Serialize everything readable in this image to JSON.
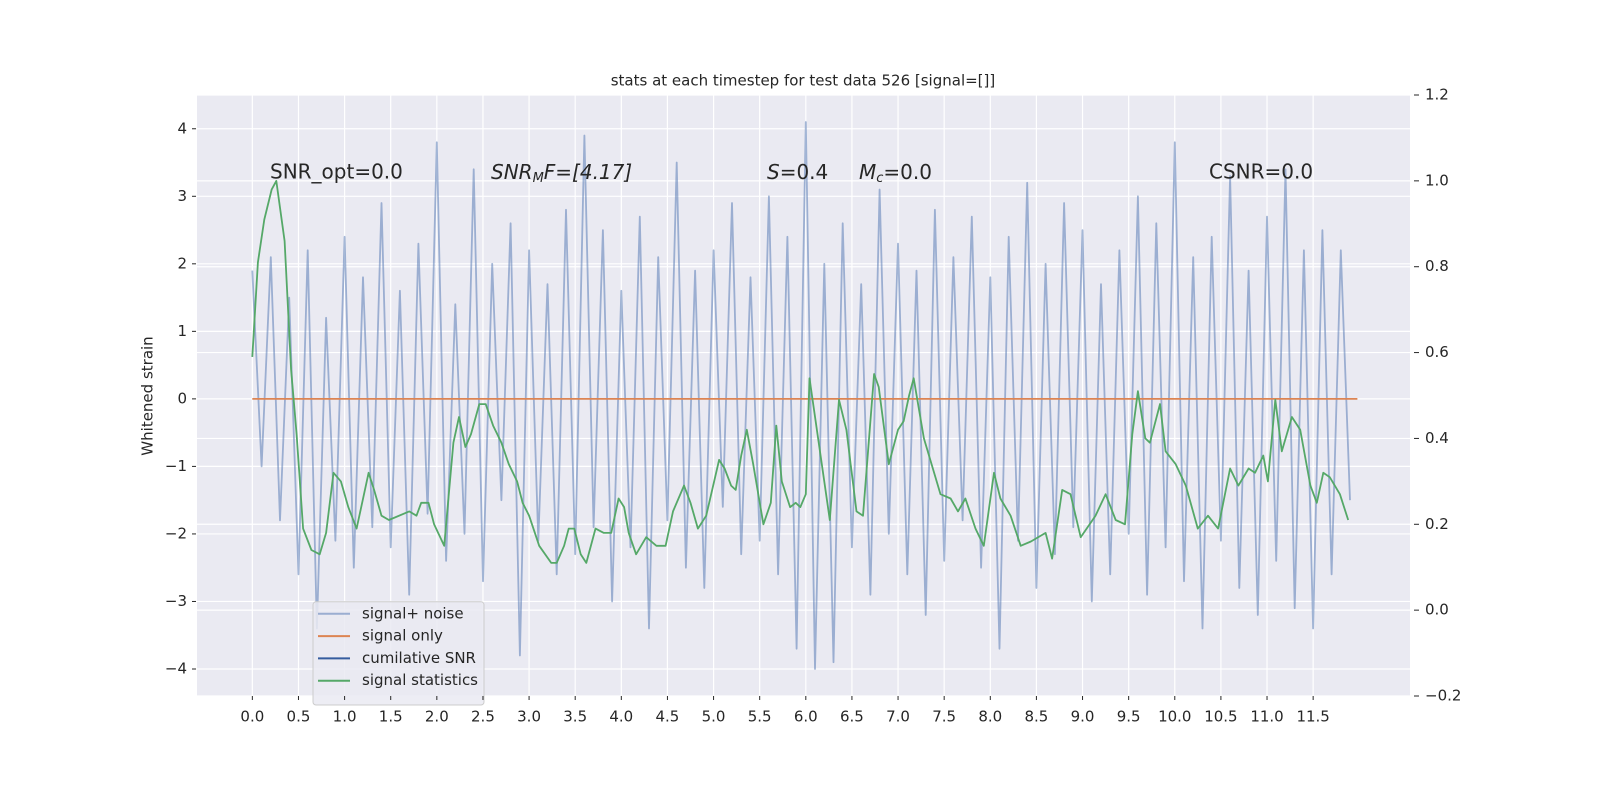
{
  "chart_data": {
    "type": "line",
    "title": "stats at each timestep for test data 526 [signal=[]]",
    "ylabel": "Whitened strain",
    "annotations": [
      "SNR_opt=0.0",
      [
        "SNR",
        "M",
        "F=[4.17]"
      ],
      [
        "S",
        "=0.4"
      ],
      [
        "M",
        "c",
        "=0.0"
      ],
      "CSNR=0.0"
    ],
    "xlim": [
      -0.6,
      12.55
    ],
    "ylim": [
      -4.4,
      4.5
    ],
    "y2lim": [
      -0.2,
      1.2
    ],
    "xticks": [
      {
        "value": 0,
        "label": "0.0"
      },
      0.5,
      {
        "value": 1,
        "label": "1.0"
      },
      1.5,
      {
        "value": 2,
        "label": "2.0"
      },
      2.5,
      {
        "value": 3,
        "label": "3.0"
      },
      3.5,
      {
        "value": 4,
        "label": "4.0"
      },
      4.5,
      {
        "value": 5,
        "label": "5.0"
      },
      5.5,
      {
        "value": 6,
        "label": "6.0"
      },
      6.5,
      {
        "value": 7,
        "label": "7.0"
      },
      7.5,
      {
        "value": 8,
        "label": "8.0"
      },
      8.5,
      {
        "value": 9,
        "label": "9.0"
      },
      9.5,
      {
        "value": 10,
        "label": "10.0"
      },
      10.5,
      {
        "value": 11,
        "label": "11.0"
      },
      11.5
    ],
    "yticks": [
      {
        "value": -4,
        "label": "−4"
      },
      {
        "value": -3,
        "label": "−3"
      },
      {
        "value": -2,
        "label": "−2"
      },
      {
        "value": -1,
        "label": "−1"
      },
      0,
      1,
      2,
      3,
      4
    ],
    "y2ticks": [
      {
        "value": -0.2,
        "label": "−0.2"
      },
      {
        "value": 0,
        "label": "0.0"
      },
      0.2,
      0.4,
      0.6,
      0.8,
      {
        "value": 1,
        "label": "1.0"
      },
      1.2
    ],
    "grid": true,
    "legend_loc": "lower left",
    "series": [
      {
        "name": "signal+ noise",
        "color": "#4c72b0",
        "alpha": 0.5,
        "axis": "y",
        "x": [
          0,
          0.1,
          0.2,
          0.3,
          0.4,
          0.5,
          0.6,
          0.7,
          0.8,
          0.9,
          1,
          1.1,
          1.2,
          1.3,
          1.4,
          1.5,
          1.6,
          1.7,
          1.8,
          1.9,
          2,
          2.1,
          2.2,
          2.3,
          2.4,
          2.5,
          2.6,
          2.7,
          2.8,
          2.9,
          3,
          3.1,
          3.2,
          3.3,
          3.4,
          3.5,
          3.6,
          3.7,
          3.8,
          3.9,
          4,
          4.1,
          4.2,
          4.3,
          4.4,
          4.5,
          4.6,
          4.7,
          4.8,
          4.9,
          5,
          5.1,
          5.2,
          5.3,
          5.4,
          5.5,
          5.6,
          5.7,
          5.8,
          5.9,
          6,
          6.1,
          6.2,
          6.3,
          6.4,
          6.5,
          6.6,
          6.7,
          6.8,
          6.9,
          7,
          7.1,
          7.2,
          7.3,
          7.4,
          7.5,
          7.6,
          7.7,
          7.8,
          7.9,
          8,
          8.1,
          8.2,
          8.3,
          8.4,
          8.5,
          8.6,
          8.7,
          8.8,
          8.9,
          9,
          9.1,
          9.2,
          9.3,
          9.4,
          9.5,
          9.6,
          9.7,
          9.8,
          9.9,
          10,
          10.1,
          10.2,
          10.3,
          10.4,
          10.5,
          10.6,
          10.7,
          10.8,
          10.9,
          11,
          11.1,
          11.2,
          11.3,
          11.4,
          11.5,
          11.6,
          11.7,
          11.8,
          11.9
        ],
        "values": [
          1.9,
          -1.0,
          2.1,
          -1.8,
          1.5,
          -2.6,
          2.2,
          -3.4,
          1.2,
          -2.1,
          2.4,
          -2.5,
          1.8,
          -1.9,
          2.9,
          -2.2,
          1.6,
          -2.9,
          2.3,
          -1.7,
          3.8,
          -2.4,
          1.4,
          -2.0,
          3.4,
          -2.7,
          2.0,
          -1.5,
          2.6,
          -3.8,
          2.2,
          -2.1,
          1.7,
          -2.6,
          2.8,
          -2.3,
          3.9,
          -1.9,
          2.5,
          -3.0,
          1.6,
          -2.2,
          2.7,
          -3.4,
          2.1,
          -1.8,
          3.5,
          -2.5,
          1.9,
          -2.8,
          2.2,
          -1.6,
          2.9,
          -2.3,
          1.8,
          -2.1,
          3.0,
          -2.6,
          2.4,
          -3.7,
          4.1,
          -4.0,
          2.0,
          -3.9,
          2.6,
          -2.2,
          1.7,
          -2.9,
          3.1,
          -2.0,
          2.3,
          -2.6,
          1.9,
          -3.2,
          2.8,
          -2.4,
          2.1,
          -1.8,
          2.7,
          -2.5,
          1.8,
          -3.7,
          2.4,
          -2.1,
          3.2,
          -2.8,
          2.0,
          -2.3,
          2.9,
          -1.9,
          2.5,
          -3.0,
          1.7,
          -2.6,
          2.2,
          -2.0,
          3.0,
          -2.9,
          2.6,
          -2.2,
          3.8,
          -2.7,
          2.1,
          -3.4,
          2.4,
          -2.1,
          3.3,
          -2.8,
          1.9,
          -3.2,
          2.7,
          -2.4,
          3.4,
          -3.1,
          2.2,
          -3.4,
          2.5,
          -2.6,
          2.2,
          -1.5
        ]
      },
      {
        "name": "signal only",
        "color": "#dd8452",
        "alpha": 1,
        "axis": "y",
        "x": [
          0,
          11.98
        ],
        "values": [
          0,
          0
        ]
      },
      {
        "name": "cumilative SNR",
        "color": "#355c9e",
        "alpha": 1,
        "axis": "y",
        "x": [],
        "values": []
      },
      {
        "name": "signal statistics",
        "color": "#55a868",
        "alpha": 1,
        "axis": "y2",
        "x": [
          0,
          0.06,
          0.13,
          0.21,
          0.26,
          0.35,
          0.42,
          0.48,
          0.55,
          0.64,
          0.73,
          0.8,
          0.88,
          0.96,
          1.04,
          1.13,
          1.26,
          1.32,
          1.4,
          1.48,
          1.7,
          1.78,
          1.83,
          1.91,
          1.97,
          2.08,
          2.18,
          2.24,
          2.31,
          2.37,
          2.46,
          2.53,
          2.61,
          2.7,
          2.78,
          2.87,
          2.93,
          3.0,
          3.11,
          3.24,
          3.3,
          3.38,
          3.43,
          3.49,
          3.56,
          3.62,
          3.72,
          3.81,
          3.89,
          3.97,
          4.03,
          4.08,
          4.16,
          4.27,
          4.38,
          4.48,
          4.56,
          4.68,
          4.75,
          4.83,
          4.92,
          5.06,
          5.12,
          5.19,
          5.24,
          5.3,
          5.36,
          5.43,
          5.54,
          5.62,
          5.68,
          5.74,
          5.83,
          5.89,
          5.94,
          6.0,
          6.04,
          6.26,
          6.36,
          6.44,
          6.55,
          6.62,
          6.74,
          6.79,
          6.9,
          7.0,
          7.06,
          7.12,
          7.17,
          7.28,
          7.46,
          7.57,
          7.65,
          7.73,
          7.84,
          7.93,
          8.04,
          8.11,
          8.22,
          8.33,
          8.44,
          8.6,
          8.67,
          8.78,
          8.87,
          8.98,
          9.14,
          9.25,
          9.36,
          9.46,
          9.54,
          9.6,
          9.68,
          9.73,
          9.84,
          9.9,
          10.01,
          10.12,
          10.25,
          10.36,
          10.47,
          10.6,
          10.69,
          10.8,
          10.87,
          10.96,
          11.01,
          11.09,
          11.16,
          11.27,
          11.36,
          11.47,
          11.54,
          11.61,
          11.68,
          11.79,
          11.88
        ],
        "values": [
          0.59,
          0.81,
          0.91,
          0.98,
          1.0,
          0.86,
          0.56,
          0.41,
          0.19,
          0.14,
          0.13,
          0.18,
          0.32,
          0.3,
          0.24,
          0.19,
          0.32,
          0.28,
          0.22,
          0.21,
          0.23,
          0.22,
          0.25,
          0.25,
          0.2,
          0.15,
          0.39,
          0.45,
          0.38,
          0.41,
          0.48,
          0.48,
          0.43,
          0.39,
          0.34,
          0.3,
          0.25,
          0.22,
          0.15,
          0.11,
          0.11,
          0.15,
          0.19,
          0.19,
          0.13,
          0.11,
          0.19,
          0.18,
          0.18,
          0.26,
          0.24,
          0.18,
          0.13,
          0.17,
          0.15,
          0.15,
          0.23,
          0.29,
          0.25,
          0.19,
          0.22,
          0.35,
          0.33,
          0.29,
          0.28,
          0.36,
          0.42,
          0.34,
          0.2,
          0.25,
          0.43,
          0.3,
          0.24,
          0.25,
          0.24,
          0.27,
          0.54,
          0.21,
          0.49,
          0.42,
          0.23,
          0.22,
          0.55,
          0.52,
          0.34,
          0.42,
          0.44,
          0.5,
          0.54,
          0.4,
          0.27,
          0.26,
          0.23,
          0.26,
          0.19,
          0.15,
          0.32,
          0.26,
          0.22,
          0.15,
          0.16,
          0.18,
          0.12,
          0.28,
          0.27,
          0.17,
          0.22,
          0.27,
          0.21,
          0.2,
          0.41,
          0.51,
          0.4,
          0.39,
          0.48,
          0.37,
          0.34,
          0.29,
          0.19,
          0.22,
          0.19,
          0.33,
          0.29,
          0.33,
          0.32,
          0.36,
          0.3,
          0.49,
          0.37,
          0.45,
          0.42,
          0.29,
          0.25,
          0.32,
          0.31,
          0.27,
          0.21
        ]
      }
    ]
  }
}
